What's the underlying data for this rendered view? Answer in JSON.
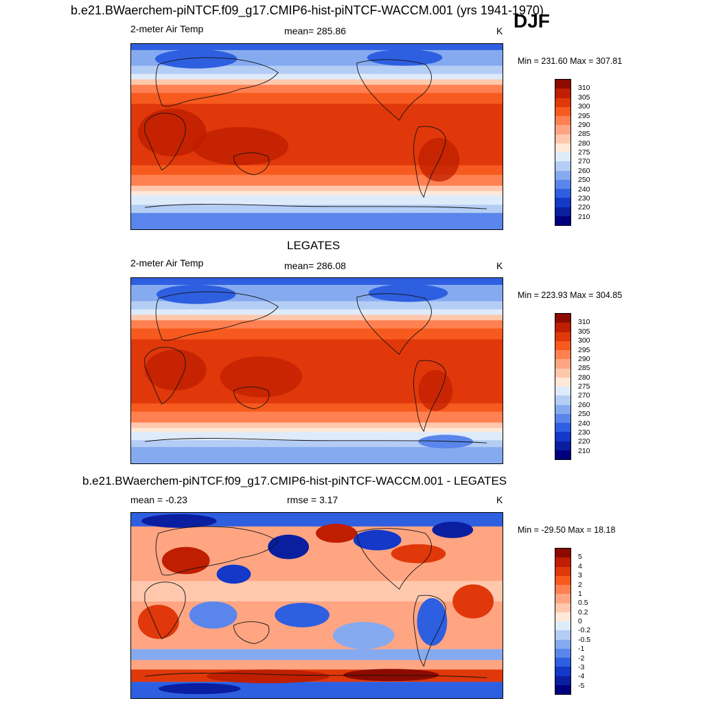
{
  "figure": {
    "main_title": "b.e21.BWaerchem-piNTCF.f09_g17.CMIP6-hist-piNTCF-WACCM.001 (yrs 1941-1970)",
    "season": "DJF"
  },
  "panels": [
    {
      "id": "model",
      "title": "",
      "left_label": "2-meter Air Temp",
      "center_label": "mean= 285.86",
      "units": "K",
      "minmax": "Min = 231.60 Max = 307.81",
      "colorbar_labels": [
        "310",
        "305",
        "300",
        "295",
        "290",
        "285",
        "280",
        "275",
        "270",
        "260",
        "250",
        "240",
        "230",
        "220",
        "210"
      ],
      "colorbar_colors": [
        "#8c0a00",
        "#bf1e00",
        "#e0380a",
        "#f75a1e",
        "#ff8050",
        "#ffa582",
        "#ffc8ad",
        "#ffe8d8",
        "#deebfa",
        "#b4cdf5",
        "#86aaf0",
        "#5a86eb",
        "#2e5fe0",
        "#1438c8",
        "#0a1ea0",
        "#00007f"
      ]
    },
    {
      "id": "obs",
      "title": "LEGATES",
      "left_label": "2-meter Air Temp",
      "center_label": "mean= 286.08",
      "units": "K",
      "minmax": "Min = 223.93 Max = 304.85",
      "colorbar_labels": [
        "310",
        "305",
        "300",
        "295",
        "290",
        "285",
        "280",
        "275",
        "270",
        "260",
        "250",
        "240",
        "230",
        "220",
        "210"
      ],
      "colorbar_colors": [
        "#8c0a00",
        "#bf1e00",
        "#e0380a",
        "#f75a1e",
        "#ff8050",
        "#ffa582",
        "#ffc8ad",
        "#ffe8d8",
        "#deebfa",
        "#b4cdf5",
        "#86aaf0",
        "#5a86eb",
        "#2e5fe0",
        "#1438c8",
        "#0a1ea0",
        "#00007f"
      ]
    },
    {
      "id": "diff",
      "title": "b.e21.BWaerchem-piNTCF.f09_g17.CMIP6-hist-piNTCF-WACCM.001 - LEGATES",
      "left_label": "mean =  -0.23",
      "center_label": "rmse =   3.17",
      "units": "K",
      "minmax": "Min = -29.50 Max =  18.18",
      "colorbar_labels": [
        "5",
        "4",
        "3",
        "2",
        "1",
        "0.5",
        "0.2",
        "0",
        "-0.2",
        "-0.5",
        "-1",
        "-2",
        "-3",
        "-4",
        "-5"
      ],
      "colorbar_colors": [
        "#8c0a00",
        "#bf1e00",
        "#e0380a",
        "#f75a1e",
        "#ff8050",
        "#ffa582",
        "#ffc8ad",
        "#ffe8d8",
        "#deebfa",
        "#b4cdf5",
        "#86aaf0",
        "#5a86eb",
        "#2e5fe0",
        "#1438c8",
        "#0a1ea0",
        "#00007f"
      ]
    }
  ]
}
